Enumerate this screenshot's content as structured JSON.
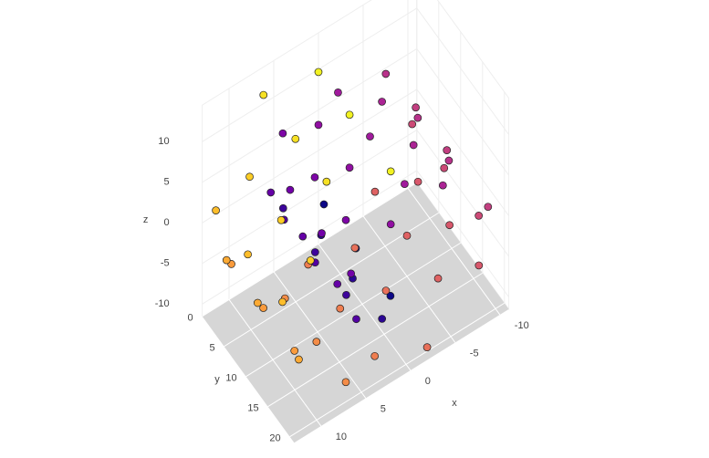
{
  "chart_data": {
    "type": "scatter3d",
    "xlabel": "x",
    "ylabel": "y",
    "zlabel": "z",
    "x": [
      0.42,
      0.42,
      0.42,
      2.44,
      2.44,
      2.44,
      4.34,
      4.34,
      4.34,
      5.76,
      5.76,
      5.76,
      6.36,
      6.36,
      6.36,
      5.91,
      5.91,
      5.91,
      4.38,
      4.38,
      4.38,
      1.91,
      1.91,
      1.91,
      -1.16,
      -1.16,
      -1.16,
      -4.36,
      -4.36,
      -4.36,
      -7.14,
      -7.14,
      -7.14,
      -8.97,
      -8.97,
      -8.97,
      -9.45,
      -9.45,
      -9.45,
      -8.39,
      -8.39,
      -8.39,
      -5.93,
      -5.93,
      -5.93,
      -2.16,
      -2.16,
      -2.16,
      2.18,
      2.18,
      2.18,
      6.49,
      6.49,
      6.49,
      10.13,
      10.13,
      10.13,
      12.19,
      12.19,
      12.19,
      12.5,
      12.5,
      12.5,
      10.44,
      10.44,
      10.44,
      6.54,
      6.54,
      6.54,
      1.91,
      1.91,
      1.91
    ],
    "y": [
      2.1,
      9.4,
      17.3,
      5.6,
      12.8,
      19.5,
      0.8,
      8.1,
      15.2,
      3.9,
      11.0,
      20.4,
      2.1,
      9.4,
      17.3,
      5.6,
      12.8,
      19.5,
      0.8,
      8.1,
      15.2,
      3.9,
      11.0,
      20.4,
      2.1,
      9.4,
      17.3,
      5.6,
      12.8,
      19.5,
      0.8,
      8.1,
      15.2,
      3.9,
      11.0,
      20.4,
      2.1,
      9.4,
      17.3,
      5.6,
      12.8,
      19.5,
      0.8,
      8.1,
      15.2,
      3.9,
      11.0,
      20.4,
      2.1,
      9.4,
      17.3,
      5.6,
      12.8,
      19.5,
      0.8,
      8.1,
      15.2,
      3.9,
      11.0,
      20.4,
      2.1,
      9.4,
      17.3,
      5.6,
      12.8,
      19.5,
      0.8,
      8.1,
      15.2,
      3.9,
      11.0,
      20.4
    ],
    "z": [
      -4.78,
      -4.78,
      -4.78,
      -4.59,
      -4.59,
      -4.59,
      -3.54,
      -3.54,
      -3.54,
      -1.68,
      -1.68,
      -1.68,
      0.75,
      0.75,
      0.75,
      3.36,
      3.36,
      3.36,
      5.71,
      5.71,
      5.71,
      7.36,
      7.36,
      7.36,
      7.91,
      7.91,
      7.91,
      7.18,
      7.18,
      7.18,
      5.14,
      5.14,
      5.14,
      2.05,
      2.05,
      2.05,
      -1.67,
      -1.67,
      -1.67,
      -5.44,
      -5.44,
      -5.44,
      -8.54,
      -8.54,
      -8.54,
      -10.58,
      -10.58,
      -10.58,
      -10.99,
      -10.99,
      -10.99,
      -9.61,
      -9.61,
      -9.61,
      -6.44,
      -6.44,
      -6.44,
      -2.25,
      -2.25,
      -2.25,
      2.75,
      2.75,
      2.75,
      8.08,
      8.08,
      8.08,
      11.92,
      11.92,
      11.92,
      13.87,
      13.87,
      13.87
    ],
    "colors": [
      "#0d0887",
      "#0d0887",
      "#0d0887",
      "#2a0593",
      "#2a0593",
      "#2a0593",
      "#3d049b",
      "#3d049b",
      "#3d049b",
      "#5302a3",
      "#5302a3",
      "#5302a3",
      "#6501a6",
      "#6501a6",
      "#6501a6",
      "#7201a8",
      "#7201a8",
      "#7201a8",
      "#7d06a6",
      "#7d06a6",
      "#7d06a6",
      "#910fa2",
      "#910fa2",
      "#910fa2",
      "#a01a9c",
      "#a01a9c",
      "#a01a9c",
      "#ab2494",
      "#ab2494",
      "#ab2494",
      "#b8328a",
      "#b8328a",
      "#b8328a",
      "#c23f80",
      "#c23f80",
      "#c23f80",
      "#cc4a76",
      "#cc4a76",
      "#cc4a76",
      "#d8576b",
      "#d8576b",
      "#d8576b",
      "#df6263",
      "#df6263",
      "#df6263",
      "#e8705a",
      "#e8705a",
      "#e8705a",
      "#ef7e50",
      "#ef7e50",
      "#ef7e50",
      "#f48c47",
      "#f48c47",
      "#f48c47",
      "#fa9b3c",
      "#fa9b3c",
      "#fa9b3c",
      "#fcaa34",
      "#fcaa34",
      "#fcaa34",
      "#fdbd2b",
      "#fdbd2b",
      "#fdbd2b",
      "#fccd25",
      "#fccd25",
      "#fccd25",
      "#f7e124",
      "#f7e124",
      "#f7e124",
      "#f2f222",
      "#f2f222",
      "#f2f222"
    ],
    "xlim": [
      -11,
      13
    ],
    "ylim": [
      0,
      21
    ],
    "zlim": [
      -11.5,
      14.5
    ],
    "xticks": [
      -10,
      -5,
      0,
      5,
      10
    ],
    "yticks": [
      0,
      5,
      10,
      15,
      20
    ],
    "zticks": [
      -10,
      -5,
      0,
      5,
      10
    ]
  }
}
